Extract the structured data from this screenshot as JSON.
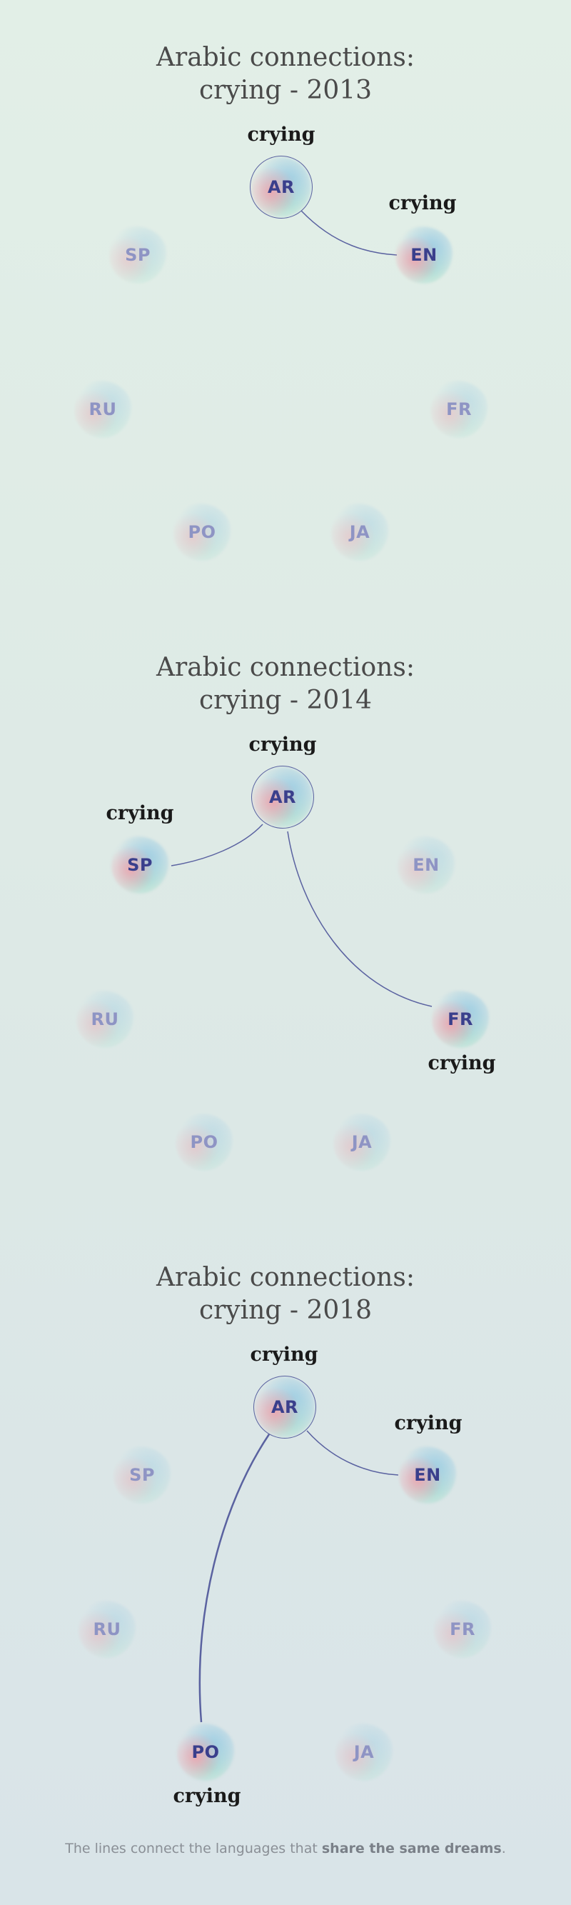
{
  "panels": [
    {
      "title_line1": "Arabic connections:",
      "title_line2": "crying - 2013",
      "hub": {
        "code": "AR",
        "word": "crying"
      },
      "nodes": [
        {
          "code": "SP",
          "active": false,
          "word": ""
        },
        {
          "code": "EN",
          "active": true,
          "word": "crying"
        },
        {
          "code": "RU",
          "active": false,
          "word": ""
        },
        {
          "code": "FR",
          "active": false,
          "word": ""
        },
        {
          "code": "PO",
          "active": false,
          "word": ""
        },
        {
          "code": "JA",
          "active": false,
          "word": ""
        }
      ]
    },
    {
      "title_line1": "Arabic connections:",
      "title_line2": "crying - 2014",
      "hub": {
        "code": "AR",
        "word": "crying"
      },
      "nodes": [
        {
          "code": "SP",
          "active": true,
          "word": "crying"
        },
        {
          "code": "EN",
          "active": false,
          "word": ""
        },
        {
          "code": "RU",
          "active": false,
          "word": ""
        },
        {
          "code": "FR",
          "active": true,
          "word": "crying"
        },
        {
          "code": "PO",
          "active": false,
          "word": ""
        },
        {
          "code": "JA",
          "active": false,
          "word": ""
        }
      ]
    },
    {
      "title_line1": "Arabic connections:",
      "title_line2": "crying - 2018",
      "hub": {
        "code": "AR",
        "word": "crying"
      },
      "nodes": [
        {
          "code": "SP",
          "active": false,
          "word": ""
        },
        {
          "code": "EN",
          "active": true,
          "word": "crying"
        },
        {
          "code": "RU",
          "active": false,
          "word": ""
        },
        {
          "code": "FR",
          "active": false,
          "word": ""
        },
        {
          "code": "PO",
          "active": true,
          "word": "crying"
        },
        {
          "code": "JA",
          "active": false,
          "word": ""
        }
      ]
    }
  ],
  "footnote": {
    "prefix": "The lines connect the languages that ",
    "emphasis": "share the same dreams",
    "suffix": "."
  },
  "colors": {
    "link": "#5a62a0",
    "code_active": "#3a3f8c",
    "code_dim": "#8e94c4"
  }
}
